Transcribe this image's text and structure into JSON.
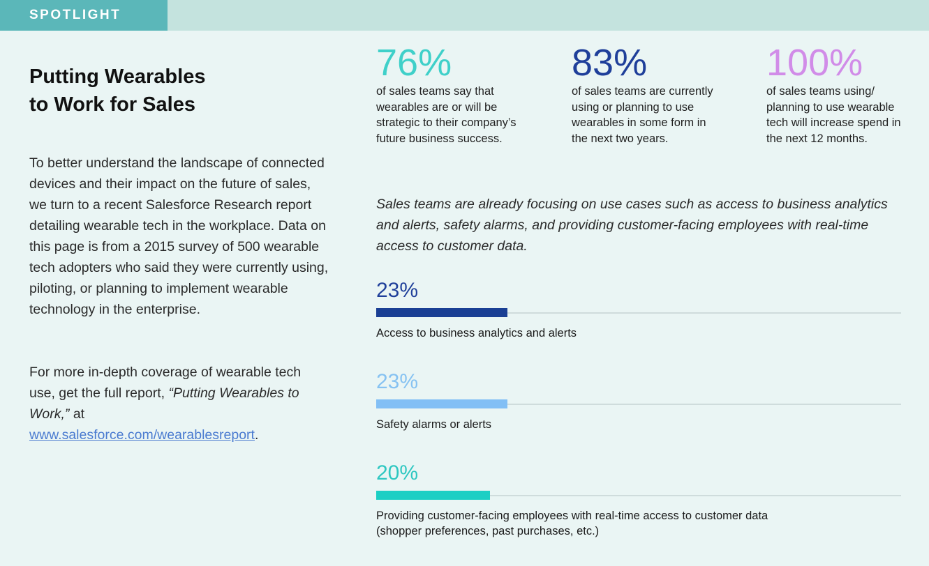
{
  "header": {
    "tag": "SPOTLIGHT"
  },
  "sidebar": {
    "title_line1": "Putting Wearables",
    "title_line2": "to Work for Sales",
    "intro": "To better understand the landscape of connected devices and their impact on the future of sales, we turn to a recent Salesforce Research report detailing wearable tech in the workplace. Data on this page is from a 2015 survey of 500 wearable tech adopters who said they were currently using, piloting, or planning to implement wearable technology in the enterprise.",
    "more_prefix": "For more in-depth coverage of wearable tech use, get the full report,",
    "more_report": "“Putting Wearables to Work,”",
    "more_at": " at",
    "more_link": "www.salesforce.com/wearablesreport",
    "more_suffix": "."
  },
  "stats": [
    {
      "value": "76%",
      "color": "#3fd0c9",
      "desc": "of sales teams say that wearables are or will be strategic to their company’s future business success."
    },
    {
      "value": "83%",
      "color": "#1f3f9a",
      "desc": "of sales teams are currently using or planning to use wearables in some form in the next two years."
    },
    {
      "value": "100%",
      "color": "#d18ce8",
      "desc": "of sales teams using/ planning to use wearable tech will increase spend in the next 12 months."
    }
  ],
  "quote": "Sales teams are already focusing on use cases such as access to business analytics and alerts, safety alarms, and providing customer-facing employees with real-time access to customer data.",
  "chart_data": {
    "type": "bar",
    "categories": [
      "Access to business analytics and alerts",
      "Safety alarms or alerts",
      "Providing customer-facing employees with real-time access to customer data (shopper preferences, past purchases, etc.)"
    ],
    "series": [
      {
        "values": [
          23,
          23,
          20
        ]
      }
    ],
    "value_labels": [
      "23%",
      "23%",
      "20%"
    ],
    "colors": [
      "#1a3f94",
      "#82bff5",
      "#1ccfc4"
    ],
    "ylim": [
      0,
      100
    ]
  },
  "bars": [
    {
      "pct": "23%",
      "label": "Access to business analytics and alerts",
      "color": "#1a3f94",
      "pct_color": "#1f3f9a"
    },
    {
      "pct": "23%",
      "label": "Safety alarms or alerts",
      "color": "#82bff5",
      "pct_color": "#86c2f2"
    },
    {
      "pct": "20%",
      "label_line1": "Providing customer-facing employees with real-time access to customer data",
      "label_line2": "(shopper preferences, past purchases, etc.)",
      "color": "#1ccfc4",
      "pct_color": "#2ec7c1"
    }
  ]
}
